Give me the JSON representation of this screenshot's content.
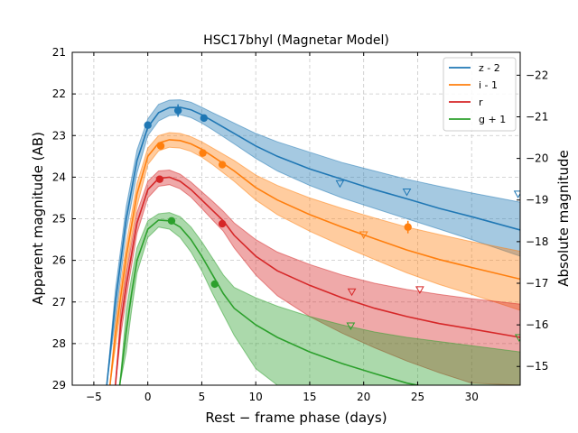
{
  "chart_data": {
    "type": "line",
    "title": "HSC17bhyl (Magnetar Model)",
    "xlabel": "Rest − frame phase (days)",
    "ylabel": "Apparent magnitude (AB)",
    "ylabel_right": "Absolute magnitude",
    "xlim": [
      -7,
      34.5
    ],
    "ylim": [
      29,
      21
    ],
    "ylim_right": [
      -14.55,
      -22.55
    ],
    "grid": true,
    "legend_position": "top-right",
    "xticks": [
      -5,
      0,
      5,
      10,
      15,
      20,
      25,
      30
    ],
    "yticks": [
      21,
      22,
      23,
      24,
      25,
      26,
      27,
      28,
      29
    ],
    "yticks_right": [
      -22,
      -21,
      -20,
      -19,
      -18,
      -17,
      -16,
      -15
    ],
    "series": [
      {
        "name": "z - 2",
        "color": "#1f77b4",
        "model_x": [
          -3.8,
          -3,
          -2,
          -1,
          0,
          1,
          2,
          3,
          4,
          5,
          6,
          8,
          10,
          12,
          15,
          18,
          21,
          24,
          27,
          30,
          34.5
        ],
        "model_y": [
          29,
          27,
          25,
          23.6,
          22.8,
          22.45,
          22.33,
          22.32,
          22.38,
          22.5,
          22.65,
          22.95,
          23.25,
          23.5,
          23.8,
          24.05,
          24.3,
          24.52,
          24.75,
          24.95,
          25.27
        ],
        "band_upper": [
          29,
          26.7,
          24.7,
          23.35,
          22.6,
          22.25,
          22.15,
          22.14,
          22.2,
          22.32,
          22.45,
          22.7,
          22.95,
          23.15,
          23.4,
          23.65,
          23.85,
          24.05,
          24.22,
          24.38,
          24.6
        ],
        "band_lower": [
          29,
          27.4,
          25.3,
          23.9,
          23.0,
          22.65,
          22.52,
          22.5,
          22.57,
          22.7,
          22.86,
          23.2,
          23.55,
          23.85,
          24.2,
          24.5,
          24.75,
          25.0,
          25.25,
          25.5,
          25.9
        ],
        "points": [
          {
            "x": 0,
            "y": 22.75,
            "err": 0.08
          },
          {
            "x": 2.8,
            "y": 22.4,
            "err": 0.15
          },
          {
            "x": 5.2,
            "y": 22.58,
            "err": 0.08
          }
        ],
        "upper_limits": [
          {
            "x": 17.8,
            "y": 24.15
          },
          {
            "x": 24,
            "y": 24.35
          },
          {
            "x": 34.3,
            "y": 24.4
          }
        ]
      },
      {
        "name": "i - 1",
        "color": "#ff7f0e",
        "model_x": [
          -3.5,
          -3,
          -2,
          -1,
          0,
          1,
          2,
          3,
          4,
          5,
          6,
          8,
          10,
          12,
          15,
          18,
          21,
          24,
          27,
          30,
          34.5
        ],
        "model_y": [
          29,
          27.8,
          25.9,
          24.4,
          23.5,
          23.18,
          23.1,
          23.12,
          23.2,
          23.33,
          23.5,
          23.85,
          24.25,
          24.55,
          24.9,
          25.2,
          25.48,
          25.75,
          25.98,
          26.17,
          26.45
        ],
        "band_upper": [
          29,
          27.5,
          25.6,
          24.15,
          23.3,
          23.0,
          22.93,
          22.95,
          23.03,
          23.15,
          23.3,
          23.6,
          23.95,
          24.2,
          24.5,
          24.75,
          24.98,
          25.2,
          25.38,
          25.55,
          25.78
        ],
        "band_lower": [
          29,
          28.1,
          26.2,
          24.7,
          23.7,
          23.37,
          23.28,
          23.3,
          23.38,
          23.52,
          23.7,
          24.1,
          24.55,
          24.9,
          25.3,
          25.65,
          25.98,
          26.3,
          26.58,
          26.82,
          27.2
        ],
        "points": [
          {
            "x": 1.2,
            "y": 23.25,
            "err": 0.07
          },
          {
            "x": 5.1,
            "y": 23.42,
            "err": 0.07
          },
          {
            "x": 6.9,
            "y": 23.7,
            "err": 0.07
          },
          {
            "x": 24.1,
            "y": 25.2,
            "err": 0.15
          }
        ],
        "upper_limits": [
          {
            "x": 20,
            "y": 25.38
          }
        ]
      },
      {
        "name": "r",
        "color": "#d62728",
        "model_x": [
          -3,
          -2.5,
          -2,
          -1,
          0,
          1,
          2,
          3,
          4,
          5,
          6,
          7,
          8,
          10,
          12,
          15,
          18,
          21,
          24,
          27,
          30,
          34.5
        ],
        "model_y": [
          29,
          27.5,
          26.6,
          25.1,
          24.3,
          24.03,
          24.0,
          24.1,
          24.3,
          24.55,
          24.8,
          25.05,
          25.4,
          25.9,
          26.25,
          26.6,
          26.9,
          27.15,
          27.35,
          27.52,
          27.65,
          27.85
        ],
        "band_upper": [
          29,
          27.2,
          26.3,
          24.85,
          24.1,
          23.85,
          23.83,
          23.93,
          24.12,
          24.35,
          24.58,
          24.82,
          25.1,
          25.5,
          25.8,
          26.1,
          26.35,
          26.55,
          26.7,
          26.82,
          26.92,
          27.05
        ],
        "band_lower": [
          29,
          27.8,
          26.9,
          25.35,
          24.5,
          24.22,
          24.18,
          24.28,
          24.48,
          24.75,
          25.03,
          25.3,
          25.7,
          26.35,
          26.85,
          27.35,
          27.75,
          28.1,
          28.42,
          28.7,
          28.95,
          29.0
        ],
        "points": [
          {
            "x": 1.1,
            "y": 24.05,
            "err": 0.07
          },
          {
            "x": 6.9,
            "y": 25.12,
            "err": 0.08
          }
        ],
        "upper_limits": [
          {
            "x": 18.9,
            "y": 26.75
          },
          {
            "x": 25.2,
            "y": 26.7
          }
        ]
      },
      {
        "name": "g + 1",
        "color": "#2ca02c",
        "model_x": [
          -2.6,
          -2,
          -1.5,
          -1,
          0,
          1,
          2,
          3,
          4,
          5,
          6,
          7,
          8,
          10,
          12,
          15,
          18,
          21,
          24,
          27,
          30,
          34.5
        ],
        "model_y": [
          29,
          27.7,
          26.8,
          26.0,
          25.25,
          25.03,
          25.05,
          25.2,
          25.5,
          25.9,
          26.35,
          26.8,
          27.15,
          27.55,
          27.85,
          28.2,
          28.48,
          28.72,
          28.95,
          29.1,
          29.25,
          29.45
        ],
        "band_upper": [
          29,
          27.2,
          26.4,
          25.7,
          25.05,
          24.88,
          24.85,
          24.95,
          25.2,
          25.55,
          25.95,
          26.35,
          26.65,
          26.9,
          27.1,
          27.35,
          27.55,
          27.72,
          27.85,
          27.95,
          28.05,
          28.2
        ],
        "band_lower": [
          29,
          28.2,
          27.2,
          26.3,
          25.45,
          25.2,
          25.25,
          25.45,
          25.8,
          26.25,
          26.8,
          27.3,
          27.8,
          28.6,
          29.0,
          29.3,
          29.5,
          29.6,
          29.7,
          29.8,
          29.9,
          30.0
        ],
        "points": [
          {
            "x": 2.2,
            "y": 25.05,
            "err": 0.07
          },
          {
            "x": 6.2,
            "y": 26.57,
            "err": 0.08
          }
        ],
        "upper_limits": [
          {
            "x": 18.8,
            "y": 27.57
          },
          {
            "x": 34.4,
            "y": 27.85
          }
        ]
      }
    ]
  }
}
